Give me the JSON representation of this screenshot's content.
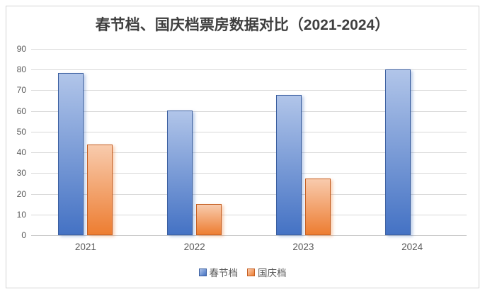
{
  "title": "春节档、国庆档票房数据对比（2021-2024）",
  "colors": {
    "series_blue": {
      "top": "#b1c5e9",
      "bottom": "#4472c4",
      "border": "#3a5e9f"
    },
    "series_orange": {
      "top": "#f8cbad",
      "bottom": "#ed7d31",
      "border": "#c55f23"
    },
    "gridline": "#d9d9d9",
    "gridline_zero": "#c9c9c9",
    "axis_text": "#595959",
    "title_text": "#3f3f3f",
    "frame_border": "#d3d3d3"
  },
  "chart_data": {
    "type": "bar",
    "title": "春节档、国庆档票房数据对比（2021-2024）",
    "categories": [
      "2021",
      "2022",
      "2023",
      "2024"
    ],
    "series": [
      {
        "name": "春节档",
        "color": "#4472c4",
        "values": [
          78.4,
          60.4,
          67.6,
          80.2
        ]
      },
      {
        "name": "国庆档",
        "color": "#ed7d31",
        "values": [
          43.9,
          15.0,
          27.3,
          null
        ]
      }
    ],
    "xlabel": "",
    "ylabel": "",
    "ylim": [
      0,
      90
    ],
    "ytick_step": 10,
    "ytick_labels": [
      "0",
      "10",
      "20",
      "30",
      "40",
      "50",
      "60",
      "70",
      "80",
      "90"
    ],
    "grid": true,
    "legend_position": "bottom",
    "legend_labels": [
      "春节档",
      "国庆档"
    ]
  }
}
